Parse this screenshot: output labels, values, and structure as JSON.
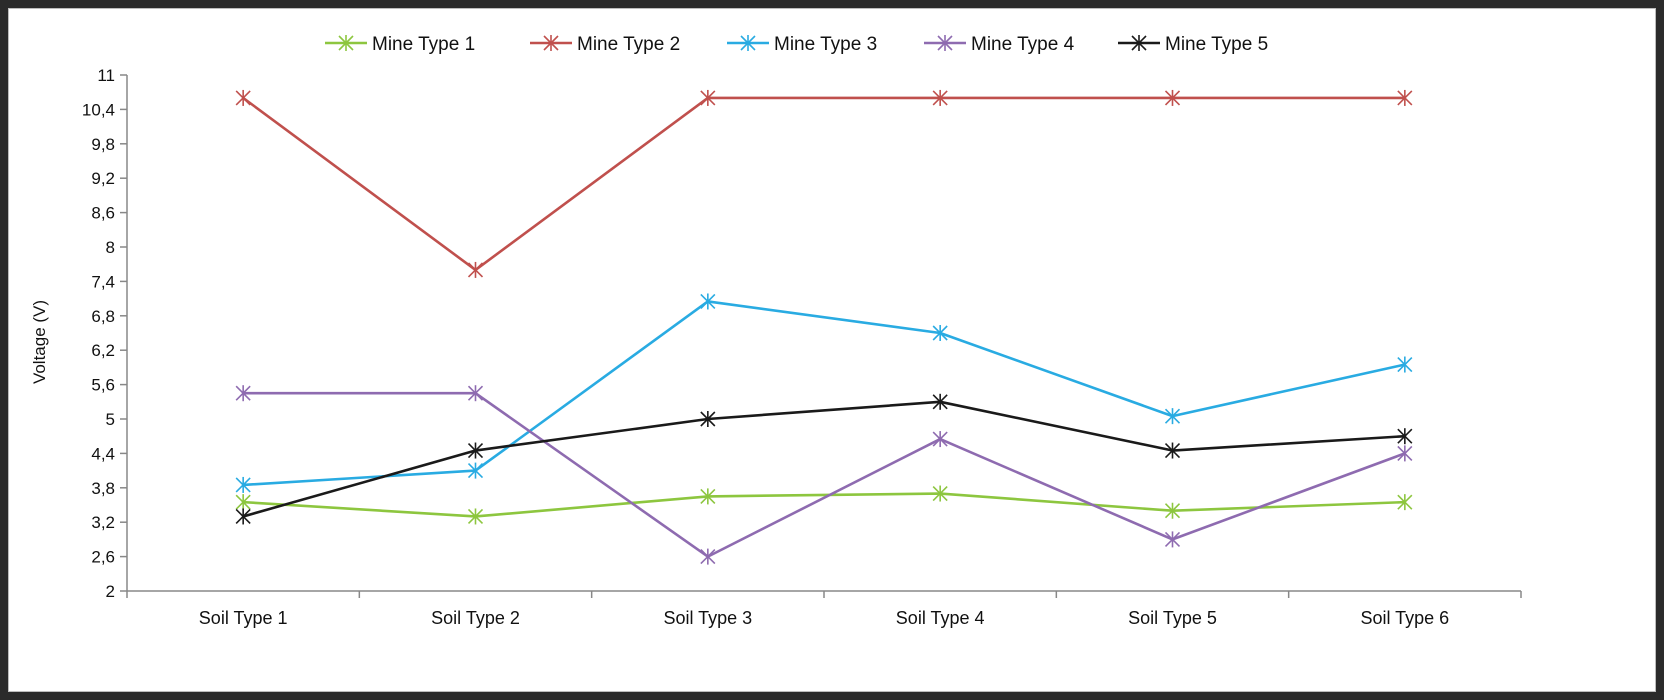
{
  "chart_data": {
    "type": "line",
    "title": "",
    "xlabel": "",
    "ylabel": "Voltage (V)",
    "categories": [
      "Soil Type 1",
      "Soil Type 2",
      "Soil Type 3",
      "Soil Type 4",
      "Soil Type 5",
      "Soil Type 6"
    ],
    "ylim": [
      2,
      11
    ],
    "yticks": [
      "2",
      "2,6",
      "3,2",
      "3,8",
      "4,4",
      "5",
      "5,6",
      "6,2",
      "6,8",
      "7,4",
      "8",
      "8,6",
      "9,2",
      "9,8",
      "10,4",
      "11"
    ],
    "ytick_values": [
      2,
      2.6,
      3.2,
      3.8,
      4.4,
      5,
      5.6,
      6.2,
      6.8,
      7.4,
      8,
      8.6,
      9.2,
      9.8,
      10.4,
      11
    ],
    "grid": false,
    "legend_position": "top",
    "series": [
      {
        "name": "Mine Type 1",
        "color": "#8dc63f",
        "values": [
          3.55,
          3.3,
          3.65,
          3.7,
          3.4,
          3.55
        ]
      },
      {
        "name": "Mine Type 2",
        "color": "#c0504d",
        "values": [
          10.6,
          7.6,
          10.6,
          10.6,
          10.6,
          10.6
        ]
      },
      {
        "name": "Mine Type 3",
        "color": "#29abe2",
        "values": [
          3.85,
          4.1,
          7.05,
          6.5,
          5.05,
          5.95
        ]
      },
      {
        "name": "Mine Type 4",
        "color": "#8e6bb0",
        "values": [
          5.45,
          5.45,
          2.6,
          4.65,
          2.9,
          4.4
        ]
      },
      {
        "name": "Mine Type 5",
        "color": "#1a1a1a",
        "values": [
          3.3,
          4.45,
          5.0,
          5.3,
          4.45,
          4.7
        ]
      }
    ]
  }
}
